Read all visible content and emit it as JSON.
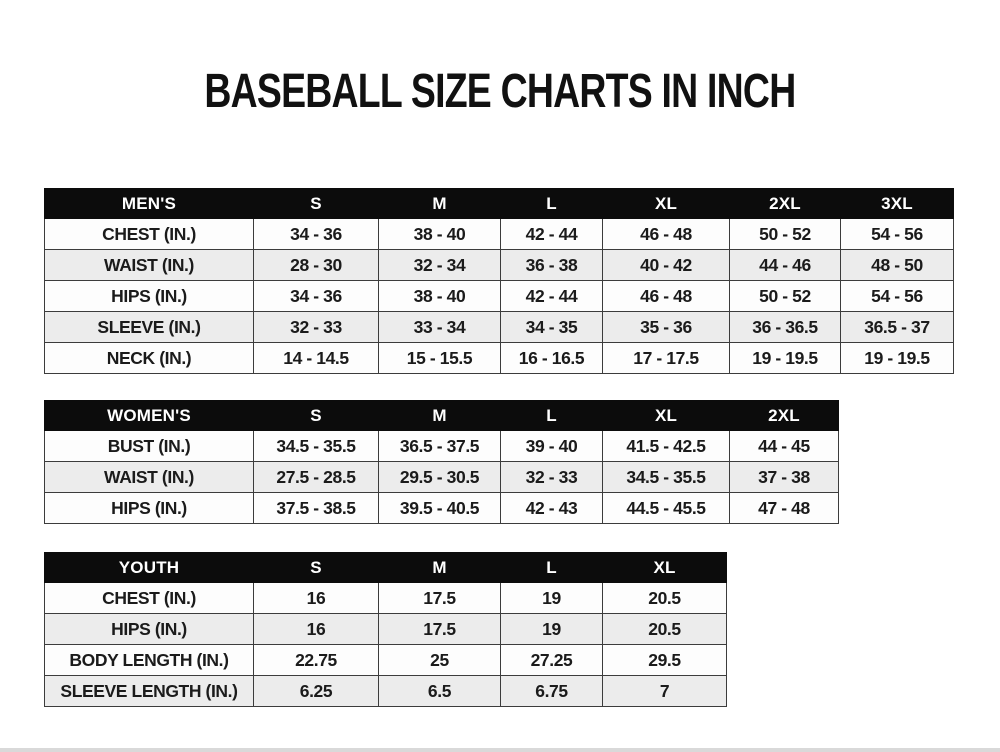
{
  "title": "BASEBALL SIZE CHARTS IN INCH",
  "colors": {
    "header_bg": "#0c0c0c",
    "header_text": "#ffffff",
    "row_white": "#fdfdfd",
    "row_gray": "#ececec",
    "border": "#3c3c3c",
    "text": "#1b1b1b"
  },
  "chart_data": [
    {
      "type": "table",
      "title": "MEN'S",
      "columns": [
        "S",
        "M",
        "L",
        "XL",
        "2XL",
        "3XL"
      ],
      "rows": [
        {
          "label": "CHEST (IN.)",
          "values": [
            "34 - 36",
            "38 - 40",
            "42 - 44",
            "46 - 48",
            "50 - 52",
            "54 - 56"
          ]
        },
        {
          "label": "WAIST (IN.)",
          "values": [
            "28 - 30",
            "32 - 34",
            "36 - 38",
            "40 - 42",
            "44 - 46",
            "48 - 50"
          ]
        },
        {
          "label": "HIPS (IN.)",
          "values": [
            "34 - 36",
            "38 - 40",
            "42 - 44",
            "46 - 48",
            "50 - 52",
            "54 - 56"
          ]
        },
        {
          "label": "SLEEVE (IN.)",
          "values": [
            "32 - 33",
            "33 - 34",
            "34 - 35",
            "35 - 36",
            "36 - 36.5",
            "36.5 - 37"
          ]
        },
        {
          "label": "NECK (IN.)",
          "values": [
            "14 - 14.5",
            "15 - 15.5",
            "16 - 16.5",
            "17 - 17.5",
            "19 - 19.5",
            "19 - 19.5"
          ]
        }
      ]
    },
    {
      "type": "table",
      "title": "WOMEN'S",
      "columns": [
        "S",
        "M",
        "L",
        "XL",
        "2XL"
      ],
      "rows": [
        {
          "label": "BUST (IN.)",
          "values": [
            "34.5 - 35.5",
            "36.5 - 37.5",
            "39 - 40",
            "41.5 - 42.5",
            "44 - 45"
          ]
        },
        {
          "label": "WAIST (IN.)",
          "values": [
            "27.5 - 28.5",
            "29.5 - 30.5",
            "32 - 33",
            "34.5 - 35.5",
            "37 - 38"
          ]
        },
        {
          "label": "HIPS (IN.)",
          "values": [
            "37.5 - 38.5",
            "39.5 - 40.5",
            "42 - 43",
            "44.5 - 45.5",
            "47 - 48"
          ]
        }
      ]
    },
    {
      "type": "table",
      "title": "YOUTH",
      "columns": [
        "S",
        "M",
        "L",
        "XL"
      ],
      "rows": [
        {
          "label": "CHEST (IN.)",
          "values": [
            "16",
            "17.5",
            "19",
            "20.5"
          ]
        },
        {
          "label": "HIPS (IN.)",
          "values": [
            "16",
            "17.5",
            "19",
            "20.5"
          ]
        },
        {
          "label": "BODY LENGTH (IN.)",
          "values": [
            "22.75",
            "25",
            "27.25",
            "29.5"
          ]
        },
        {
          "label": "SLEEVE LENGTH (IN.)",
          "values": [
            "6.25",
            "6.5",
            "6.75",
            "7"
          ]
        }
      ]
    }
  ]
}
